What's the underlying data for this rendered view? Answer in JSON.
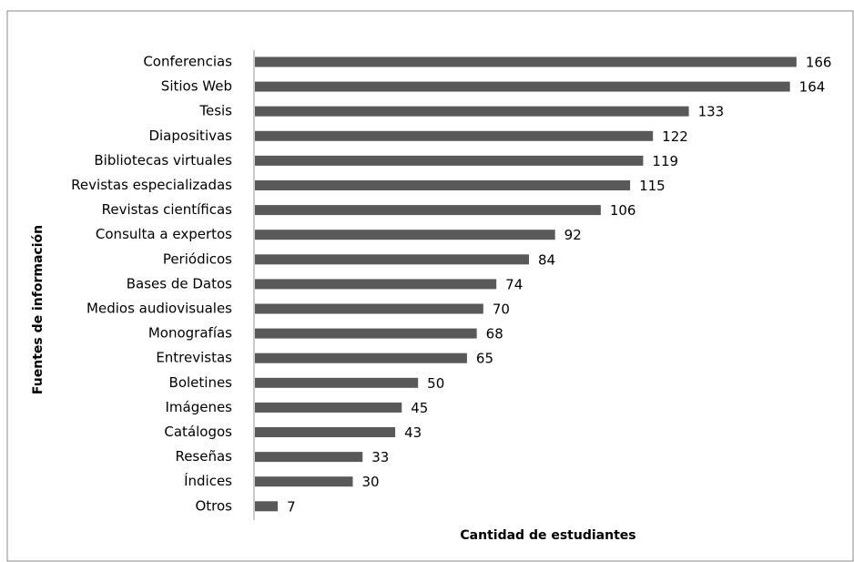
{
  "chart_data": {
    "type": "barh",
    "xlabel": "Cantidad de estudiantes",
    "ylabel": "Fuentes de información",
    "categories": [
      "Conferencias",
      "Sitios Web",
      "Tesis",
      "Diapositivas",
      "Bibliotecas virtuales",
      "Revistas especializadas",
      "Revistas científicas",
      "Consulta a expertos",
      "Periódicos",
      "Bases de Datos",
      "Medios audiovisuales",
      "Monografías",
      "Entrevistas",
      "Boletines",
      "Imágenes",
      "Catálogos",
      "Reseñas",
      "Índices",
      "Otros"
    ],
    "values": [
      166,
      164,
      133,
      122,
      119,
      115,
      106,
      92,
      84,
      74,
      70,
      68,
      65,
      50,
      45,
      43,
      33,
      30,
      7
    ],
    "color": "#595959",
    "xlim": [
      0,
      180
    ]
  }
}
